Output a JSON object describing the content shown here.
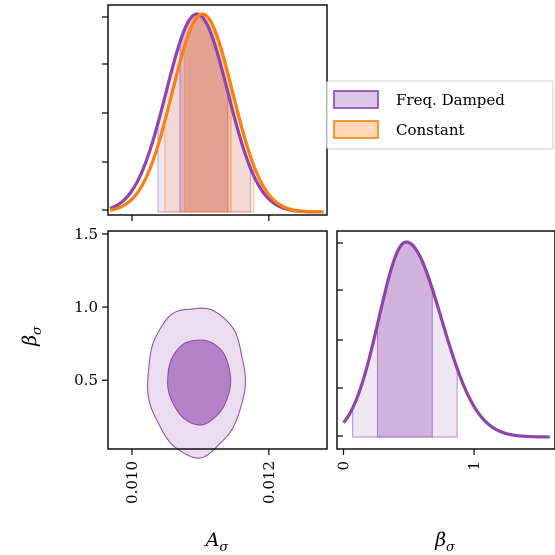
{
  "colors": {
    "freq_damped": "#8e44ad",
    "constant": "#ff7f0e"
  },
  "chart_data": {
    "type": "corner",
    "parameters": [
      {
        "symbol": "A",
        "subscript": "σ",
        "range": [
          0.00965,
          0.01285
        ],
        "ticks": [
          0.01,
          0.012
        ],
        "tick_labels": [
          "0.010",
          "0.012"
        ]
      },
      {
        "symbol": "β",
        "subscript": "σ",
        "range": [
          -0.05,
          1.62
        ],
        "ticks": [
          0,
          1
        ],
        "tick_labels": [
          "0",
          "1"
        ]
      }
    ],
    "legend": {
      "position": "top-right",
      "entries": [
        {
          "label": "Freq. Damped",
          "color_key": "freq_damped"
        },
        {
          "label": "Constant",
          "color_key": "constant"
        }
      ]
    },
    "series": [
      {
        "name": "Freq. Damped",
        "color_key": "freq_damped",
        "A_marginal": {
          "mean": 0.01095,
          "sd": 0.00045,
          "band_68": [
            0.0107,
            0.0114
          ],
          "band_95": [
            0.01038,
            0.01173
          ]
        },
        "beta_marginal": {
          "mode": 0.48,
          "band_68": [
            0.26,
            0.68
          ],
          "band_95": [
            0.07,
            0.87
          ]
        },
        "contour_68": {
          "center": [
            0.01098,
            0.51
          ],
          "half_width": [
            0.00046,
            0.29
          ]
        },
        "contour_95": {
          "center": [
            0.01094,
            0.53
          ],
          "half_width": [
            0.00071,
            0.51
          ]
        }
      },
      {
        "name": "Constant",
        "color_key": "constant",
        "A_marginal": {
          "mean": 0.01103,
          "sd": 0.00044,
          "band_68": [
            0.01077,
            0.01145
          ],
          "band_95": [
            0.01048,
            0.01178
          ]
        }
      }
    ],
    "joint_ylim": [
      0.03,
      1.52
    ],
    "joint_yticks": [
      0.5,
      1.0,
      1.5
    ],
    "joint_ytick_labels": [
      "0.5",
      "1.0",
      "1.5"
    ]
  }
}
